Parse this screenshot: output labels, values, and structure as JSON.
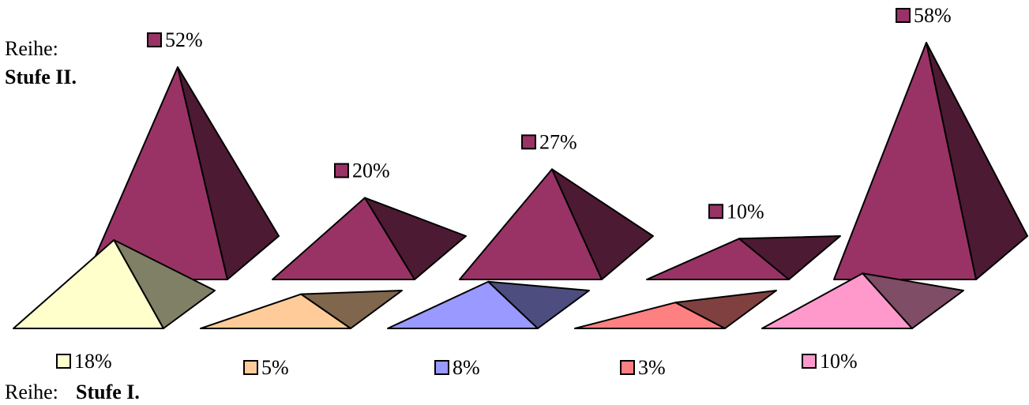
{
  "chart_data": {
    "type": "pyramid-3d",
    "series": [
      {
        "name_prefix": "Reihe:",
        "name": "Stufe II.",
        "values": [
          52,
          20,
          27,
          10,
          58
        ],
        "labels": [
          "52%",
          "20%",
          "27%",
          "10%",
          "58%"
        ],
        "color": "#993366"
      },
      {
        "name_prefix": "Reihe:",
        "name": "Stufe I.",
        "values": [
          18,
          5,
          8,
          3,
          10
        ],
        "labels": [
          "18%",
          "5%",
          "8%",
          "3%",
          "10%"
        ],
        "colors": [
          "#ffffcc",
          "#ffcc99",
          "#9999ff",
          "#ff8080",
          "#ff99cc"
        ]
      }
    ]
  }
}
